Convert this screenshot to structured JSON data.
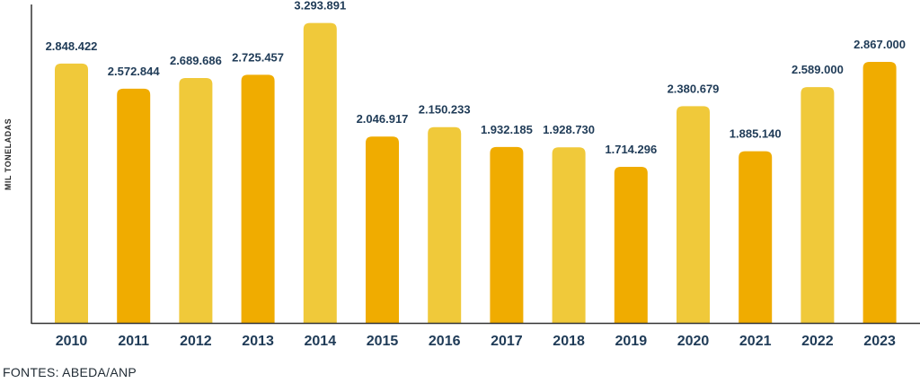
{
  "chart_data": {
    "type": "bar",
    "title": "",
    "xlabel": "",
    "ylabel": "MIL TONELADAS",
    "categories": [
      "2010",
      "2011",
      "2012",
      "2013",
      "2014",
      "2015",
      "2016",
      "2017",
      "2018",
      "2019",
      "2020",
      "2021",
      "2022",
      "2023"
    ],
    "values": [
      2848422,
      2572844,
      2689686,
      2725457,
      3293891,
      2046917,
      2150233,
      1932185,
      1928730,
      1714296,
      2380679,
      1885140,
      2589000,
      2867000
    ],
    "value_labels": [
      "2.848.422",
      "2.572.844",
      "2.689.686",
      "2.725.457",
      "3.293.891",
      "2.046.917",
      "2.150.233",
      "1.932.185",
      "1.928.730",
      "1.714.296",
      "2.380.679",
      "1.885.140",
      "2.589.000",
      "2.867.000"
    ],
    "ylim": [
      0,
      3300000
    ],
    "colors": [
      "#f0c93a",
      "#f0ac00"
    ],
    "grid": false
  },
  "source": "FONTES: ABEDA/ANP"
}
